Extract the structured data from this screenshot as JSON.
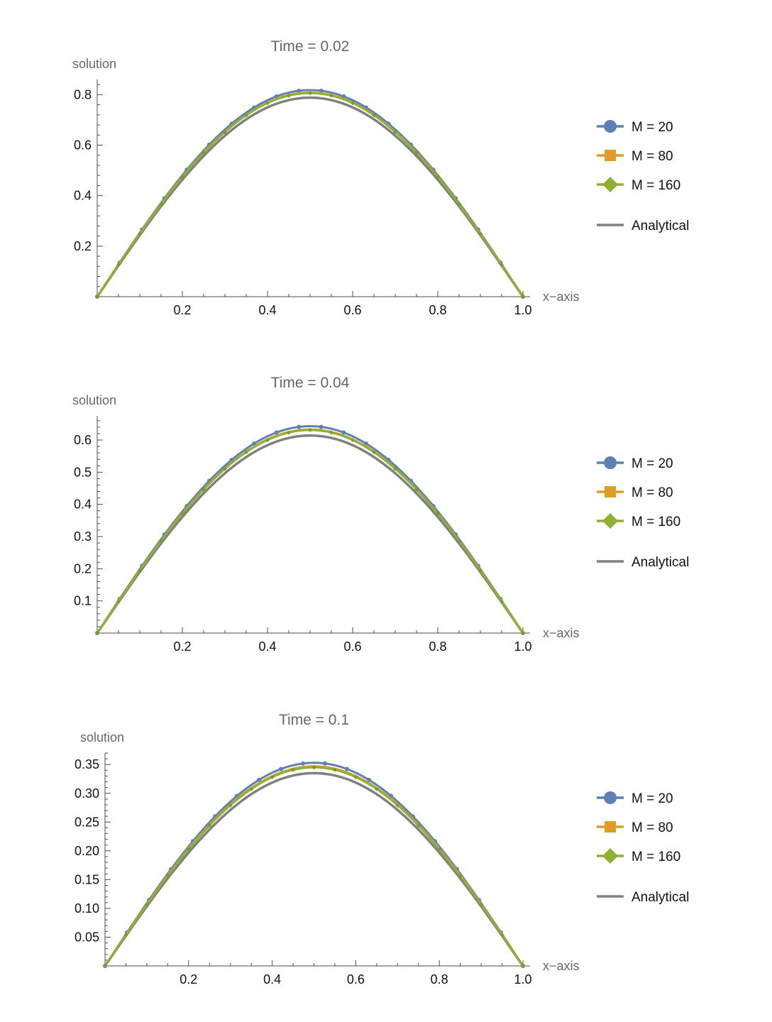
{
  "chart_data": [
    {
      "type": "line",
      "title": "Time = 0.02",
      "xlabel": "x−axis",
      "ylabel": "solution",
      "xlim": [
        0,
        1.0
      ],
      "ylim": [
        0,
        0.86
      ],
      "xticks": [
        0.2,
        0.4,
        0.6,
        0.8,
        1.0
      ],
      "xtick_labels": [
        "0.2",
        "0.4",
        "0.6",
        "0.8",
        "1.0"
      ],
      "yticks": [
        0.2,
        0.4,
        0.6,
        0.8
      ],
      "ytick_labels": [
        "0.2",
        "0.4",
        "0.6",
        "0.8"
      ],
      "legend_position": "right",
      "series": [
        {
          "name": "M = 20",
          "peak": 0.818,
          "color": "#5e81b5",
          "marker": "circle"
        },
        {
          "name": "M = 80",
          "peak": 0.808,
          "color": "#e19c24",
          "marker": "square"
        },
        {
          "name": "M = 160",
          "peak": 0.806,
          "color": "#8fb032",
          "marker": "diamond"
        },
        {
          "name": "Analytical",
          "peak": 0.788,
          "color": "#808080",
          "marker": "none"
        }
      ]
    },
    {
      "type": "line",
      "title": "Time = 0.04",
      "xlabel": "x−axis",
      "ylabel": "solution",
      "xlim": [
        0,
        1.0
      ],
      "ylim": [
        0,
        0.675
      ],
      "xticks": [
        0.2,
        0.4,
        0.6,
        0.8,
        1.0
      ],
      "xtick_labels": [
        "0.2",
        "0.4",
        "0.6",
        "0.8",
        "1.0"
      ],
      "yticks": [
        0.1,
        0.2,
        0.3,
        0.4,
        0.5,
        0.6
      ],
      "ytick_labels": [
        "0.1",
        "0.2",
        "0.3",
        "0.4",
        "0.5",
        "0.6"
      ],
      "legend_position": "right",
      "series": [
        {
          "name": "M = 20",
          "peak": 0.643,
          "color": "#5e81b5",
          "marker": "circle"
        },
        {
          "name": "M = 80",
          "peak": 0.633,
          "color": "#e19c24",
          "marker": "square"
        },
        {
          "name": "M = 160",
          "peak": 0.631,
          "color": "#8fb032",
          "marker": "diamond"
        },
        {
          "name": "Analytical",
          "peak": 0.614,
          "color": "#808080",
          "marker": "none"
        }
      ]
    },
    {
      "type": "line",
      "title": "Time = 0.1",
      "xlabel": "x−axis",
      "ylabel": "solution",
      "xlim": [
        0,
        1.0
      ],
      "ylim": [
        0,
        0.37
      ],
      "xticks": [
        0.2,
        0.4,
        0.6,
        0.8,
        1.0
      ],
      "xtick_labels": [
        "0.2",
        "0.4",
        "0.6",
        "0.8",
        "1.0"
      ],
      "yticks": [
        0.05,
        0.1,
        0.15,
        0.2,
        0.25,
        0.3,
        0.35
      ],
      "ytick_labels": [
        "0.05",
        "0.10",
        "0.15",
        "0.20",
        "0.25",
        "0.30",
        "0.35"
      ],
      "legend_position": "right",
      "series": [
        {
          "name": "M = 20",
          "peak": 0.353,
          "color": "#5e81b5",
          "marker": "circle"
        },
        {
          "name": "M = 80",
          "peak": 0.347,
          "color": "#e19c24",
          "marker": "square"
        },
        {
          "name": "M = 160",
          "peak": 0.345,
          "color": "#8fb032",
          "marker": "diamond"
        },
        {
          "name": "Analytical",
          "peak": 0.335,
          "color": "#808080",
          "marker": "none"
        }
      ]
    }
  ]
}
